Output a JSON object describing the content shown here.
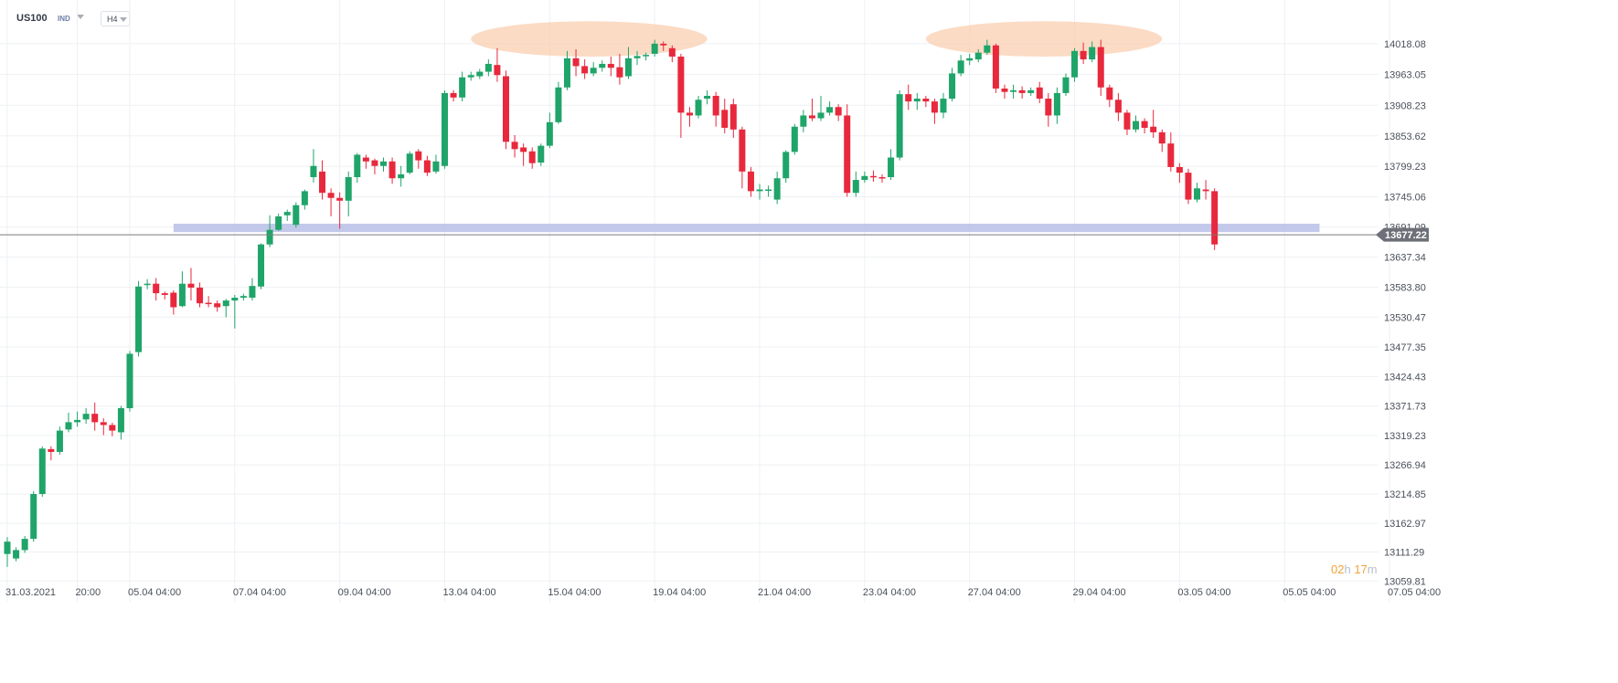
{
  "header": {
    "symbol": "US100",
    "instrument_type": "IND",
    "timeframe": "H4"
  },
  "countdown": {
    "hours": "02",
    "hours_unit": "h",
    "minutes": "17",
    "minutes_unit": "m"
  },
  "colors": {
    "up": "#1fa469",
    "down": "#e8283c",
    "grid": "#eef0f3",
    "support_band": "#b8bfe6",
    "top_highlight": "#f9cdad",
    "price_line": "#7a7a7a",
    "price_label_bg": "#6d7078"
  },
  "chart_data": {
    "type": "candlestick",
    "ylim": [
      13050,
      14120
    ],
    "y_ticks": [
      14018.08,
      13963.05,
      13908.23,
      13853.62,
      13799.23,
      13745.06,
      13691.09,
      13637.34,
      13583.8,
      13530.47,
      13477.35,
      13424.43,
      13371.73,
      13319.23,
      13266.94,
      13214.85,
      13162.97,
      13111.29,
      13059.81
    ],
    "x_labels": [
      {
        "label": "31.03.2021",
        "index": 0
      },
      {
        "label": "20:00",
        "index": 8
      },
      {
        "label": "05.04  04:00",
        "index": 14
      },
      {
        "label": "07.04  04:00",
        "index": 26
      },
      {
        "label": "09.04  04:00",
        "index": 38
      },
      {
        "label": "13.04  04:00",
        "index": 50
      },
      {
        "label": "15.04  04:00",
        "index": 62
      },
      {
        "label": "19.04  04:00",
        "index": 74
      },
      {
        "label": "21.04  04:00",
        "index": 86
      },
      {
        "label": "23.04  04:00",
        "index": 98
      },
      {
        "label": "27.04  04:00",
        "index": 110
      },
      {
        "label": "29.04  04:00",
        "index": 122
      },
      {
        "label": "03.05  04:00",
        "index": 134
      },
      {
        "label": "05.05  04:00",
        "index": 146
      },
      {
        "label": "07.05  04:00",
        "index": 158
      }
    ],
    "current_price": 13677.22,
    "support_zone": {
      "from": 13682,
      "to": 13697,
      "start_index": 19,
      "end_index": 150
    },
    "highlights": [
      {
        "start_index": 53,
        "end_index": 80,
        "low": 13995,
        "high": 14058
      },
      {
        "start_index": 105,
        "end_index": 132,
        "low": 13995,
        "high": 14058
      }
    ],
    "candles": [
      [
        13108,
        13130,
        13085,
        13138
      ],
      [
        13100,
        13115,
        13095,
        13120
      ],
      [
        13115,
        13135,
        13110,
        13140
      ],
      [
        13135,
        13215,
        13130,
        13220
      ],
      [
        13215,
        13296,
        13210,
        13300
      ],
      [
        13295,
        13290,
        13275,
        13300
      ],
      [
        13290,
        13328,
        13285,
        13335
      ],
      [
        13330,
        13343,
        13325,
        13360
      ],
      [
        13343,
        13347,
        13335,
        13362
      ],
      [
        13348,
        13358,
        13340,
        13368
      ],
      [
        13358,
        13343,
        13328,
        13378
      ],
      [
        13343,
        13338,
        13320,
        13350
      ],
      [
        13338,
        13328,
        13318,
        13342
      ],
      [
        13325,
        13368,
        13312,
        13372
      ],
      [
        13368,
        13465,
        13362,
        13470
      ],
      [
        13468,
        13585,
        13460,
        13595
      ],
      [
        13588,
        13590,
        13580,
        13598
      ],
      [
        13590,
        13573,
        13560,
        13600
      ],
      [
        13573,
        13570,
        13562,
        13576
      ],
      [
        13574,
        13548,
        13535,
        13578
      ],
      [
        13550,
        13590,
        13548,
        13612
      ],
      [
        13590,
        13583,
        13560,
        13618
      ],
      [
        13583,
        13555,
        13548,
        13592
      ],
      [
        13556,
        13555,
        13548,
        13568
      ],
      [
        13555,
        13548,
        13540,
        13560
      ],
      [
        13550,
        13560,
        13530,
        13563
      ],
      [
        13560,
        13565,
        13510,
        13570
      ],
      [
        13565,
        13568,
        13560,
        13572
      ],
      [
        13565,
        13586,
        13560,
        13600
      ],
      [
        13585,
        13660,
        13580,
        13662
      ],
      [
        13660,
        13686,
        13655,
        13712
      ],
      [
        13686,
        13710,
        13684,
        13715
      ],
      [
        13712,
        13718,
        13702,
        13722
      ],
      [
        13695,
        13730,
        13690,
        13735
      ],
      [
        13730,
        13755,
        13722,
        13758
      ],
      [
        13780,
        13800,
        13770,
        13830
      ],
      [
        13790,
        13752,
        13740,
        13810
      ],
      [
        13752,
        13743,
        13710,
        13760
      ],
      [
        13743,
        13738,
        13688,
        13753
      ],
      [
        13738,
        13780,
        13710,
        13790
      ],
      [
        13780,
        13820,
        13770,
        13823
      ],
      [
        13815,
        13808,
        13795,
        13820
      ],
      [
        13810,
        13800,
        13785,
        13813
      ],
      [
        13800,
        13808,
        13790,
        13815
      ],
      [
        13808,
        13778,
        13768,
        13815
      ],
      [
        13778,
        13785,
        13763,
        13800
      ],
      [
        13788,
        13822,
        13785,
        13826
      ],
      [
        13826,
        13810,
        13795,
        13830
      ],
      [
        13810,
        13788,
        13782,
        13818
      ],
      [
        13790,
        13808,
        13786,
        13820
      ],
      [
        13800,
        13930,
        13795,
        13935
      ],
      [
        13930,
        13922,
        13915,
        13935
      ],
      [
        13922,
        13958,
        13915,
        13968
      ],
      [
        13958,
        13962,
        13952,
        13968
      ],
      [
        13960,
        13968,
        13955,
        13973
      ],
      [
        13968,
        13982,
        13960,
        13990
      ],
      [
        13980,
        13962,
        13950,
        14010
      ],
      [
        13960,
        13843,
        13830,
        13970
      ],
      [
        13843,
        13830,
        13815,
        13855
      ],
      [
        13833,
        13825,
        13800,
        13840
      ],
      [
        13826,
        13805,
        13795,
        13833
      ],
      [
        13806,
        13836,
        13800,
        13840
      ],
      [
        13836,
        13878,
        13832,
        13895
      ],
      [
        13878,
        13940,
        13875,
        13950
      ],
      [
        13940,
        13992,
        13935,
        14005
      ],
      [
        13992,
        13978,
        13960,
        14008
      ],
      [
        13978,
        13965,
        13955,
        13990
      ],
      [
        13965,
        13975,
        13960,
        13985
      ],
      [
        13975,
        13982,
        13968,
        13988
      ],
      [
        13982,
        13975,
        13960,
        13995
      ],
      [
        13976,
        13958,
        13945,
        14000
      ],
      [
        13960,
        13992,
        13955,
        14012
      ],
      [
        13992,
        13996,
        13980,
        14005
      ],
      [
        13998,
        13998,
        13988,
        14002
      ],
      [
        14000,
        14018,
        13995,
        14025
      ],
      [
        14018,
        14015,
        14005,
        14022
      ],
      [
        14010,
        13995,
        13985,
        14015
      ],
      [
        13995,
        13895,
        13850,
        14000
      ],
      [
        13895,
        13890,
        13870,
        13905
      ],
      [
        13890,
        13918,
        13885,
        13925
      ],
      [
        13920,
        13925,
        13910,
        13935
      ],
      [
        13925,
        13890,
        13870,
        13932
      ],
      [
        13900,
        13868,
        13858,
        13920
      ],
      [
        13910,
        13865,
        13850,
        13920
      ],
      [
        13865,
        13790,
        13760,
        13870
      ],
      [
        13790,
        13755,
        13745,
        13798
      ],
      [
        13755,
        13758,
        13740,
        13768
      ],
      [
        13758,
        13758,
        13745,
        13765
      ],
      [
        13740,
        13778,
        13732,
        13790
      ],
      [
        13778,
        13825,
        13770,
        13828
      ],
      [
        13825,
        13870,
        13820,
        13875
      ],
      [
        13870,
        13890,
        13860,
        13900
      ],
      [
        13890,
        13885,
        13880,
        13920
      ],
      [
        13885,
        13895,
        13880,
        13925
      ],
      [
        13895,
        13905,
        13890,
        13915
      ],
      [
        13905,
        13890,
        13880,
        13910
      ],
      [
        13890,
        13752,
        13745,
        13910
      ],
      [
        13752,
        13775,
        13745,
        13790
      ],
      [
        13775,
        13782,
        13770,
        13790
      ],
      [
        13782,
        13780,
        13772,
        13792
      ],
      [
        13780,
        13778,
        13770,
        13785
      ],
      [
        13780,
        13815,
        13775,
        13830
      ],
      [
        13815,
        13928,
        13810,
        13935
      ],
      [
        13928,
        13915,
        13900,
        13945
      ],
      [
        13915,
        13920,
        13900,
        13930
      ],
      [
        13920,
        13915,
        13905,
        13925
      ],
      [
        13915,
        13895,
        13875,
        13920
      ],
      [
        13895,
        13920,
        13885,
        13930
      ],
      [
        13920,
        13965,
        13915,
        13975
      ],
      [
        13965,
        13988,
        13960,
        13998
      ],
      [
        13988,
        13992,
        13980,
        14000
      ],
      [
        13990,
        14002,
        13985,
        14008
      ],
      [
        14002,
        14015,
        13998,
        14025
      ],
      [
        14015,
        13938,
        13930,
        14018
      ],
      [
        13938,
        13932,
        13920,
        13945
      ],
      [
        13932,
        13935,
        13920,
        13945
      ],
      [
        13935,
        13930,
        13920,
        13942
      ],
      [
        13930,
        13935,
        13925,
        13940
      ],
      [
        13940,
        13920,
        13912,
        13950
      ],
      [
        13920,
        13890,
        13870,
        13930
      ],
      [
        13890,
        13930,
        13875,
        13940
      ],
      [
        13930,
        13958,
        13925,
        13965
      ],
      [
        13958,
        14005,
        13950,
        14010
      ],
      [
        14005,
        13990,
        13982,
        14020
      ],
      [
        13990,
        14012,
        13985,
        14022
      ],
      [
        14012,
        13940,
        13925,
        14025
      ],
      [
        13940,
        13918,
        13905,
        13945
      ],
      [
        13918,
        13895,
        13880,
        13930
      ],
      [
        13895,
        13865,
        13855,
        13900
      ],
      [
        13865,
        13880,
        13860,
        13890
      ],
      [
        13880,
        13868,
        13858,
        13885
      ],
      [
        13870,
        13860,
        13850,
        13900
      ],
      [
        13860,
        13840,
        13825,
        13865
      ],
      [
        13840,
        13798,
        13790,
        13860
      ],
      [
        13798,
        13788,
        13770,
        13805
      ],
      [
        13788,
        13740,
        13732,
        13795
      ],
      [
        13740,
        13760,
        13735,
        13770
      ],
      [
        13758,
        13755,
        13740,
        13775
      ],
      [
        13755,
        13660,
        13650,
        13760
      ]
    ]
  }
}
